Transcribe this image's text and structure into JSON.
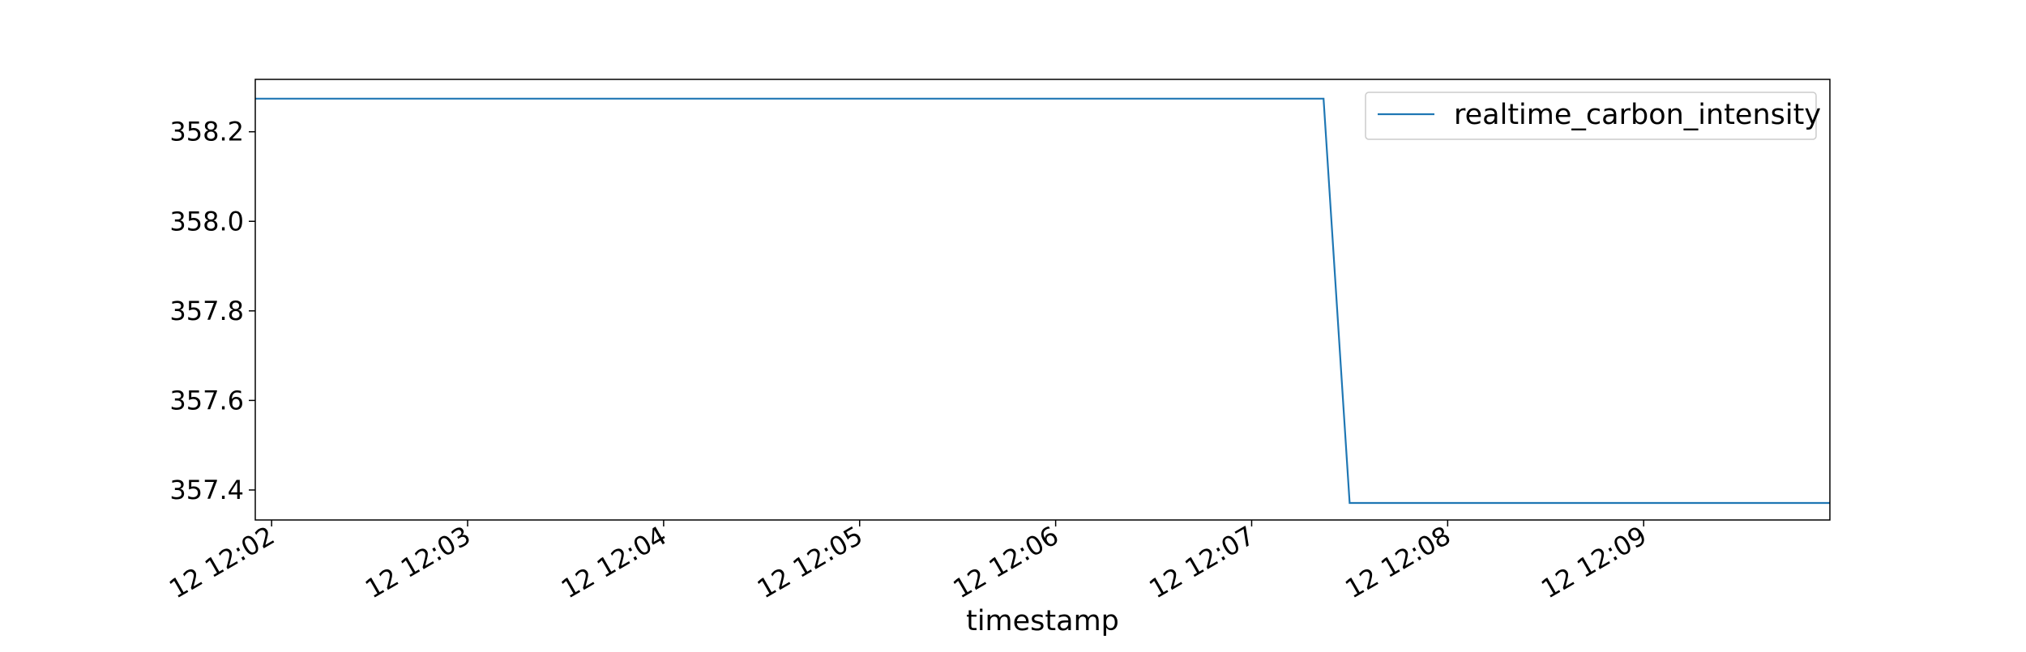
{
  "chart_data": {
    "type": "line",
    "title": "",
    "xlabel": "timestamp",
    "ylabel": "",
    "x_ticks": [
      "12 12:02",
      "12 12:03",
      "12 12:04",
      "12 12:05",
      "12 12:06",
      "12 12:07",
      "12 12:08",
      "12 12:09"
    ],
    "y_ticks": [
      "357.4",
      "357.6",
      "357.8",
      "358.0",
      "358.2"
    ],
    "xlim": [
      "12:01:55",
      "12:09:57"
    ],
    "ylim": [
      357.333,
      358.317
    ],
    "grid": false,
    "legend_position": "top-right",
    "series": [
      {
        "name": "realtime_carbon_intensity",
        "color": "#1f77b4",
        "x": [
          "12:01:55",
          "12:07:22",
          "12:07:30",
          "12:09:57"
        ],
        "y": [
          358.274,
          358.274,
          357.371,
          357.371
        ]
      }
    ]
  }
}
